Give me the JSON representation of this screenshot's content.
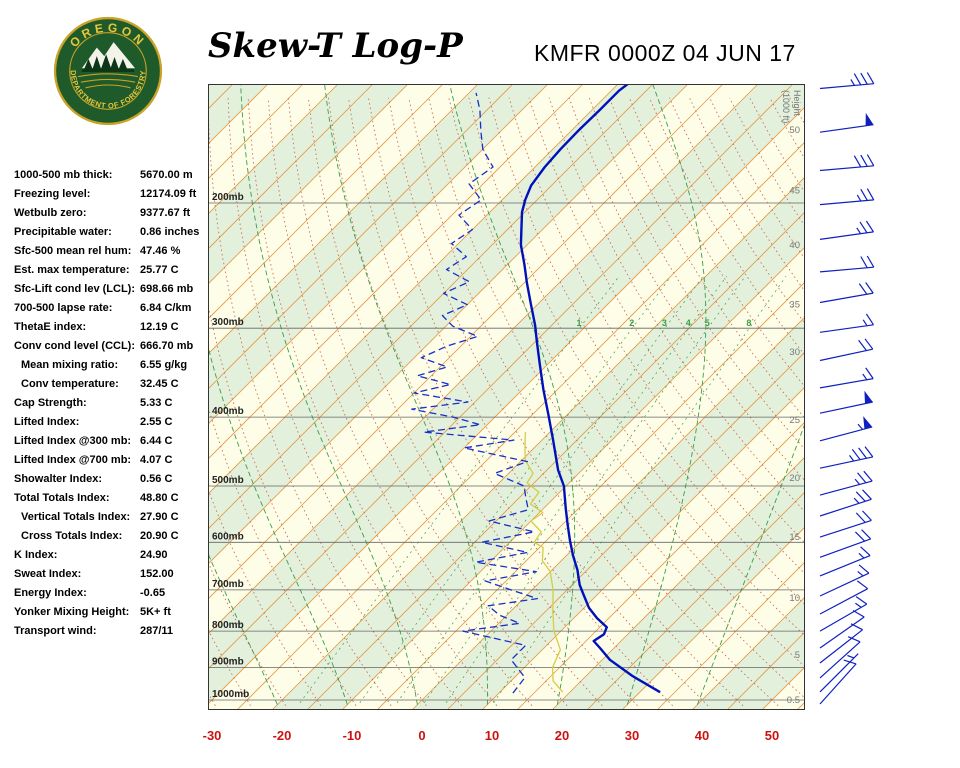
{
  "header": {
    "title": "Skew-T Log-P",
    "station_line": "KMFR 0000Z 04 JUN 17"
  },
  "logo": {
    "top_text": "OREGON",
    "bottom_text": "DEPARTMENT OF FORESTRY"
  },
  "indices": {
    "rows": [
      {
        "label": "1000-500 mb thick:",
        "value": "5670.00 m"
      },
      {
        "label": "Freezing level:",
        "value": "12174.09 ft"
      },
      {
        "label": "Wetbulb zero:",
        "value": "9377.67 ft"
      },
      {
        "label": "Precipitable water:",
        "value": "0.86 inches"
      },
      {
        "label": "Sfc-500 mean rel hum:",
        "value": "47.46 %"
      },
      {
        "label": "Est. max temperature:",
        "value": "25.77 C"
      },
      {
        "label": "Sfc-Lift cond lev (LCL):",
        "value": "698.66 mb"
      },
      {
        "label": "700-500 lapse rate:",
        "value": "6.84 C/km"
      },
      {
        "label": "ThetaE index:",
        "value": "12.19 C"
      },
      {
        "label": "Conv cond level (CCL):",
        "value": "666.70 mb"
      },
      {
        "label": "Mean mixing ratio:",
        "value": "6.55 g/kg",
        "indent": true
      },
      {
        "label": "Conv temperature:",
        "value": "32.45 C",
        "indent": true
      },
      {
        "label": "Cap Strength:",
        "value": "5.33 C"
      },
      {
        "label": "Lifted Index:",
        "value": "2.55 C"
      },
      {
        "label": "Lifted Index @300 mb:",
        "value": "6.44 C"
      },
      {
        "label": "Lifted Index @700 mb:",
        "value": "4.07 C"
      },
      {
        "label": "Showalter Index:",
        "value": "0.56 C"
      },
      {
        "label": "Total Totals Index:",
        "value": "48.80 C"
      },
      {
        "label": "Vertical Totals Index:",
        "value": "27.90 C",
        "indent": true
      },
      {
        "label": "Cross Totals Index:",
        "value": "20.90 C",
        "indent": true
      },
      {
        "label": "K Index:",
        "value": "24.90"
      },
      {
        "label": "Sweat Index:",
        "value": "152.00"
      },
      {
        "label": "Energy Index:",
        "value": "-0.65"
      },
      {
        "label": "Yonker Mixing Height:",
        "value": "5K+ ft"
      },
      {
        "label": "Transport wind:",
        "value": "287/11"
      }
    ]
  },
  "chart_data": {
    "type": "skew-t",
    "station": "KMFR",
    "valid_time": "0000Z 04 JUN 17",
    "pressure_axis_mb": [
      200,
      300,
      400,
      500,
      600,
      700,
      800,
      900,
      1000
    ],
    "temp_axis_c": [
      -30,
      -20,
      -10,
      0,
      10,
      20,
      30,
      40,
      50
    ],
    "height_axis_label_lines": [
      "Height",
      "(1000 ft)"
    ],
    "height_ticks": [
      {
        "v": "50",
        "p": 158
      },
      {
        "v": "45",
        "p": 192
      },
      {
        "v": "40",
        "p": 229
      },
      {
        "v": "35",
        "p": 278
      },
      {
        "v": "30",
        "p": 324
      },
      {
        "v": "25",
        "p": 404
      },
      {
        "v": "20",
        "p": 487
      },
      {
        "v": "15",
        "p": 590
      },
      {
        "v": "10",
        "p": 719
      },
      {
        "v": "5",
        "p": 864
      },
      {
        "v": "0.5",
        "p": 1000
      }
    ],
    "mixing_ratio_labels": [
      1,
      2,
      3,
      4,
      5,
      8
    ],
    "temperature_profile_p_t": [
      [
        975,
        32.9
      ],
      [
        925,
        26.6
      ],
      [
        878,
        21.1
      ],
      [
        845,
        18
      ],
      [
        826,
        16.1
      ],
      [
        808,
        16.6
      ],
      [
        790,
        16
      ],
      [
        767,
        13.3
      ],
      [
        742,
        10.7
      ],
      [
        714,
        8.3
      ],
      [
        689,
        6.1
      ],
      [
        656,
        3.6
      ],
      [
        627,
        1
      ],
      [
        596,
        -1.7
      ],
      [
        566,
        -4.3
      ],
      [
        537,
        -6.9
      ],
      [
        500,
        -10.3
      ],
      [
        475,
        -13.4
      ],
      [
        431,
        -18.4
      ],
      [
        397,
        -22.7
      ],
      [
        366,
        -27
      ],
      [
        338,
        -31
      ],
      [
        312,
        -35
      ],
      [
        297,
        -37.4
      ],
      [
        278,
        -40.9
      ],
      [
        259,
        -44.6
      ],
      [
        244,
        -47.6
      ],
      [
        229,
        -50.9
      ],
      [
        218,
        -53
      ],
      [
        206,
        -55.4
      ],
      [
        198,
        -56.7
      ],
      [
        189,
        -57.9
      ],
      [
        178,
        -58.6
      ],
      [
        168,
        -58.9
      ],
      [
        158,
        -59
      ],
      [
        148,
        -58.9
      ],
      [
        139,
        -58.9
      ],
      [
        136,
        -58.6
      ]
    ],
    "dewpoint_profile_p_t": [
      [
        978,
        12
      ],
      [
        930,
        11.5
      ],
      [
        878,
        7
      ],
      [
        838,
        7
      ],
      [
        800,
        -4
      ],
      [
        780,
        3
      ],
      [
        760,
        -1
      ],
      [
        737,
        -4
      ],
      [
        720,
        2
      ],
      [
        700,
        -3
      ],
      [
        680,
        -8
      ],
      [
        660,
        -2
      ],
      [
        640,
        -12
      ],
      [
        620,
        -6
      ],
      [
        600,
        -14
      ],
      [
        580,
        -8
      ],
      [
        560,
        -16
      ],
      [
        540,
        -12
      ],
      [
        520,
        -14
      ],
      [
        500,
        -16
      ],
      [
        480,
        -22
      ],
      [
        462,
        -19
      ],
      [
        442,
        -30
      ],
      [
        431,
        -24
      ],
      [
        420,
        -38
      ],
      [
        410,
        -31
      ],
      [
        400,
        -36
      ],
      [
        390,
        -43
      ],
      [
        381,
        -36
      ],
      [
        370,
        -45
      ],
      [
        360,
        -41
      ],
      [
        350,
        -47
      ],
      [
        340,
        -44
      ],
      [
        330,
        -49
      ],
      [
        318,
        -47
      ],
      [
        308,
        -44
      ],
      [
        298,
        -49
      ],
      [
        288,
        -52
      ],
      [
        278,
        -50
      ],
      [
        268,
        -55
      ],
      [
        258,
        -53
      ],
      [
        248,
        -58
      ],
      [
        238,
        -57
      ],
      [
        228,
        -61
      ],
      [
        218,
        -60
      ],
      [
        208,
        -64
      ],
      [
        198,
        -63
      ],
      [
        188,
        -67
      ],
      [
        178,
        -66
      ],
      [
        168,
        -70
      ],
      [
        158,
        -73
      ],
      [
        148,
        -76
      ],
      [
        140,
        -79
      ]
    ],
    "wetbulb_profile_p_t": [
      [
        975,
        19
      ],
      [
        940,
        16
      ],
      [
        900,
        14
      ],
      [
        850,
        12.6
      ],
      [
        800,
        9
      ],
      [
        750,
        6
      ],
      [
        700,
        3
      ],
      [
        660,
        0
      ],
      [
        637,
        -2.7
      ],
      [
        610,
        -4.5
      ],
      [
        600,
        -6.5
      ],
      [
        580,
        -7
      ],
      [
        560,
        -10
      ],
      [
        545,
        -9.5
      ],
      [
        530,
        -12.5
      ],
      [
        510,
        -13
      ],
      [
        495,
        -16
      ],
      [
        480,
        -16.5
      ],
      [
        460,
        -19.5
      ],
      [
        445,
        -21
      ],
      [
        430,
        -22.5
      ],
      [
        420,
        -23.5
      ]
    ],
    "wind_barbs": [
      {
        "p": 138,
        "spd": 35,
        "dir": 275
      },
      {
        "p": 159,
        "spd": 50,
        "dir": 278
      },
      {
        "p": 180,
        "spd": 30,
        "dir": 275
      },
      {
        "p": 201,
        "spd": 25,
        "dir": 275
      },
      {
        "p": 225,
        "spd": 25,
        "dir": 278
      },
      {
        "p": 250,
        "spd": 20,
        "dir": 275
      },
      {
        "p": 276,
        "spd": 20,
        "dir": 280
      },
      {
        "p": 304,
        "spd": 15,
        "dir": 278
      },
      {
        "p": 333,
        "spd": 20,
        "dir": 282
      },
      {
        "p": 364,
        "spd": 15,
        "dir": 280
      },
      {
        "p": 395,
        "spd": 50,
        "dir": 282
      },
      {
        "p": 432,
        "spd": 55,
        "dir": 285
      },
      {
        "p": 472,
        "spd": 35,
        "dir": 282
      },
      {
        "p": 515,
        "spd": 25,
        "dir": 285
      },
      {
        "p": 551,
        "spd": 25,
        "dir": 288
      },
      {
        "p": 590,
        "spd": 20,
        "dir": 288
      },
      {
        "p": 630,
        "spd": 20,
        "dir": 290
      },
      {
        "p": 669,
        "spd": 15,
        "dir": 292
      },
      {
        "p": 714,
        "spd": 15,
        "dir": 295
      },
      {
        "p": 757,
        "spd": 10,
        "dir": 298
      },
      {
        "p": 800,
        "spd": 15,
        "dir": 300
      },
      {
        "p": 845,
        "spd": 10,
        "dir": 305
      },
      {
        "p": 887,
        "spd": 10,
        "dir": 308
      },
      {
        "p": 931,
        "spd": 10,
        "dir": 312
      },
      {
        "p": 974,
        "spd": 5,
        "dir": 315
      },
      {
        "p": 1013,
        "spd": 10,
        "dir": 318
      }
    ],
    "colors": {
      "band_cream": "#FDFDE8",
      "band_green": "#E2F0DC",
      "isotherm": "#E59842",
      "dry_adiabat": "#CC6650",
      "moist_adiabat": "#3C9E47",
      "pressure_line": "#666666",
      "mb_text": "#222222",
      "height_text": "#787878",
      "temp_line": "#0010BB",
      "dewpoint_line": "#1830C8",
      "wetbulb_line": "#D8CC45",
      "wind": "#1020C0",
      "axis_red": "#CC1111"
    }
  }
}
